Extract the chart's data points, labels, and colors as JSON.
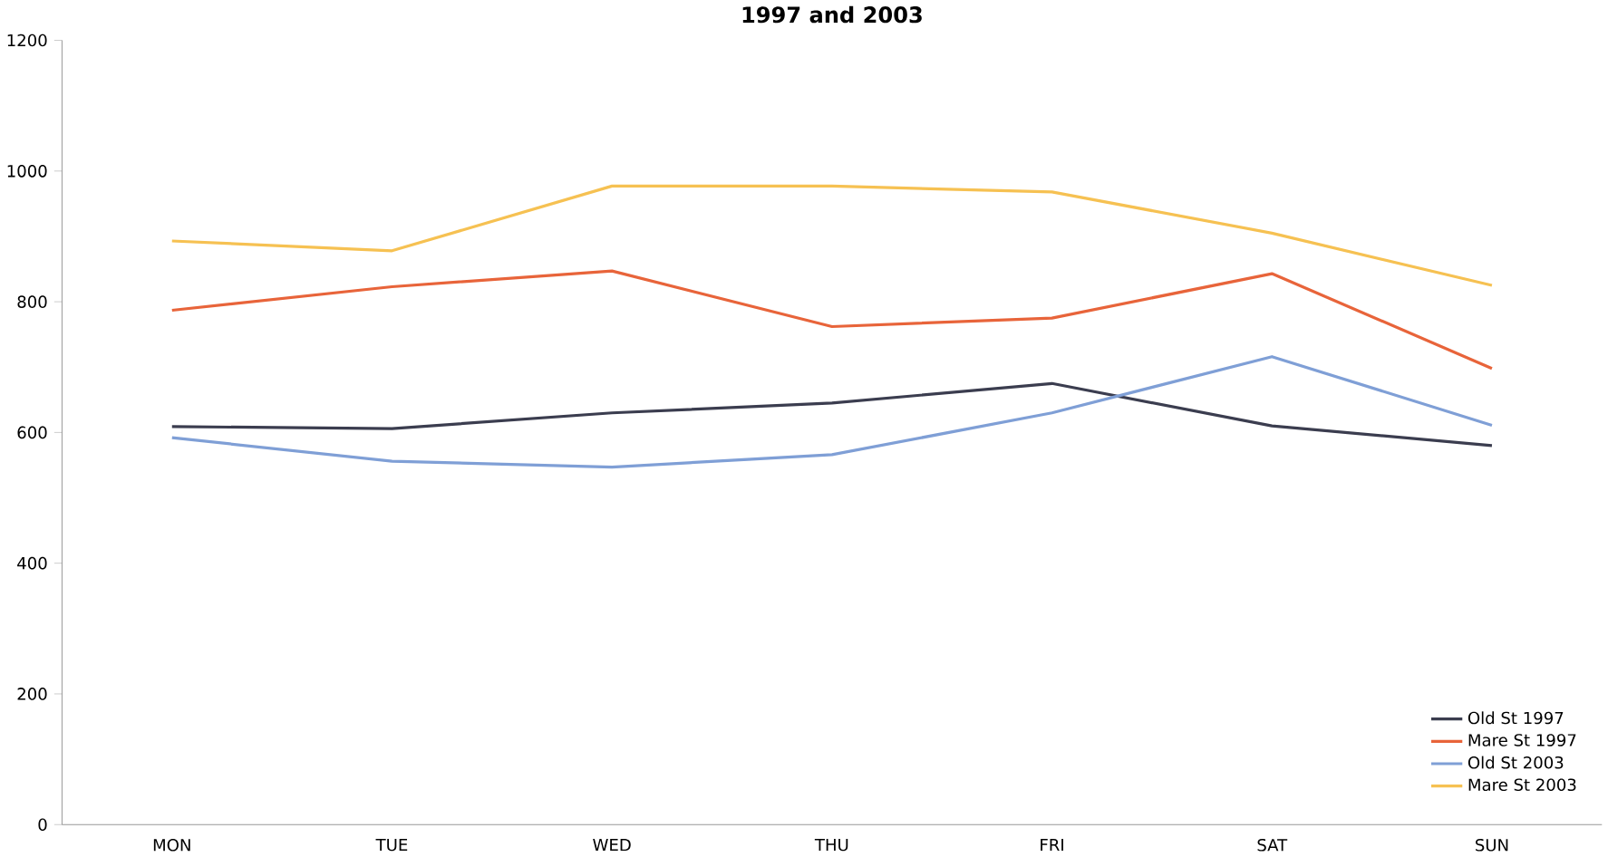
{
  "chart_data": {
    "type": "line",
    "title": "1997 and 2003",
    "categories": [
      "MON",
      "TUE",
      "WED",
      "THU",
      "FRI",
      "SAT",
      "SUN"
    ],
    "series": [
      {
        "name": "Old St 1997",
        "color": "#3b3d4f",
        "values": [
          609,
          606,
          630,
          645,
          675,
          610,
          580
        ]
      },
      {
        "name": "Mare St 1997",
        "color": "#e8643a",
        "values": [
          787,
          823,
          847,
          762,
          775,
          843,
          698
        ]
      },
      {
        "name": "Old St 2003",
        "color": "#7f9fd6",
        "values": [
          592,
          556,
          547,
          566,
          630,
          716,
          611
        ]
      },
      {
        "name": "Mare St 2003",
        "color": "#f6c152",
        "values": [
          893,
          878,
          977,
          977,
          968,
          905,
          825
        ]
      }
    ],
    "ylim": [
      0,
      1200
    ],
    "yticks": [
      0,
      200,
      400,
      600,
      800,
      1000,
      1200
    ],
    "grid": false,
    "legend": "bottom right",
    "marker": "none",
    "line_style": "solid"
  }
}
